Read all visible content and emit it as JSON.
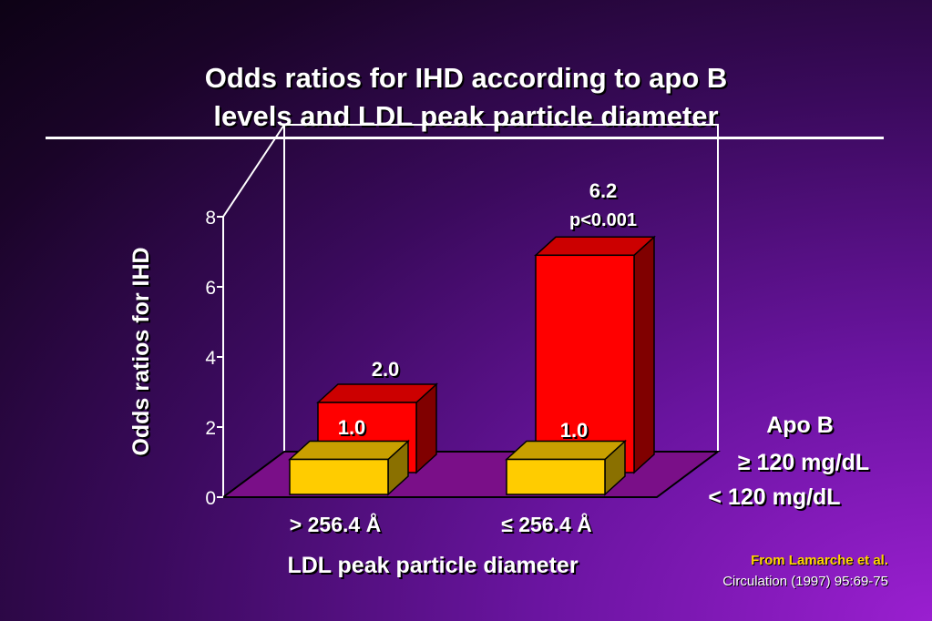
{
  "title_line1": "Odds ratios for IHD according to apo B",
  "title_line2": "levels and LDL peak particle diameter",
  "chart_data": {
    "type": "bar",
    "categories": [
      "> 256.4 Å",
      "≤ 256.4 Å"
    ],
    "series": [
      {
        "name": "≥ 120 mg/dL",
        "color": "#ff0000",
        "values": [
          2.0,
          6.2
        ],
        "labels": [
          "2.0",
          "6.2"
        ]
      },
      {
        "name": "< 120 mg/dL",
        "color": "#ffcc00",
        "values": [
          1.0,
          1.0
        ],
        "labels": [
          "1.0",
          "1.0"
        ]
      }
    ],
    "annotation": "p<0.001",
    "ylabel": "Odds ratios for IHD",
    "xlabel": "LDL peak particle diameter",
    "legend_title": "Apo B",
    "yticks": [
      0,
      2,
      4,
      6,
      8
    ],
    "ylim": [
      0,
      8
    ]
  },
  "credit_line1": "From Lamarche et al.",
  "credit_line2": "Circulation (1997) 95:69-75"
}
